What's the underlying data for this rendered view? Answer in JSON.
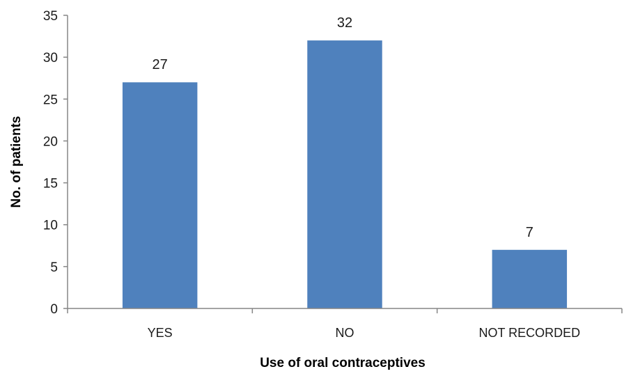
{
  "chart_data": {
    "type": "bar",
    "categories": [
      "YES",
      "NO",
      "NOT RECORDED"
    ],
    "values": [
      27,
      32,
      7
    ],
    "title": "",
    "xlabel": "Use of oral contraceptives",
    "ylabel": "No. of patients",
    "ylim": [
      0,
      35
    ],
    "yticks": [
      0,
      5,
      10,
      15,
      20,
      25,
      30,
      35
    ],
    "grid": false,
    "legend": "none",
    "data_labels": [
      "27",
      "32",
      "7"
    ],
    "colors": {
      "bar": "#4f81bd",
      "axis": "#868686"
    }
  }
}
